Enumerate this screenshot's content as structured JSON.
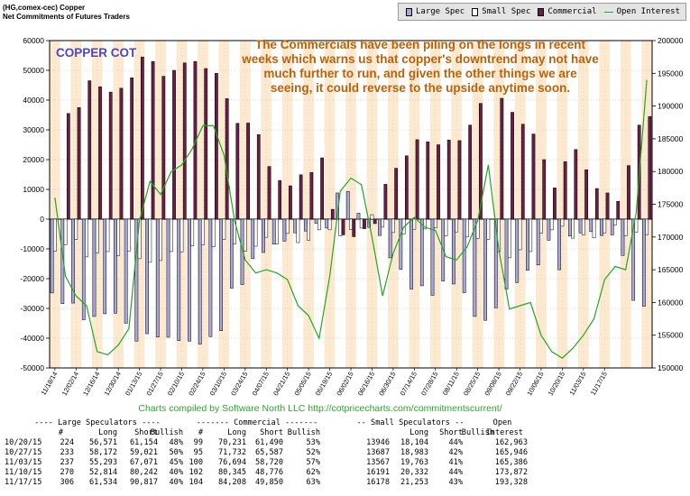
{
  "header": {
    "line1": "(HG,comex-cec) Copper",
    "line2": "Net Commitments of Futures Traders"
  },
  "legend": {
    "large_spec": "Large Spec",
    "small_spec": "Small Spec",
    "commercial": "Commercial",
    "open_interest": "Open Interest"
  },
  "colors": {
    "large_spec": "#a8a8d8",
    "small_spec": "#ffffff",
    "commercial": "#6b1e43",
    "open_interest": "#22a622",
    "band": "#fde9d0",
    "cot_title": "#4848c0",
    "annotation": "#b8620c",
    "credits": "#28a828"
  },
  "chart_data": {
    "type": "bar",
    "title": "COPPER COT",
    "annotation": "The Commercials have been piling on the longs in recent weeks which warns us that copper's downtrend may not have much further to run, and given the other things we are seeing, it could reverse to the upside anytime soon.",
    "credits": "Charts compiled by Software North LLC  http://cotpricecharts.com/commitmentscurrent/",
    "ylim_left": [
      -50000,
      60000
    ],
    "ylim_right": [
      150000,
      200000
    ],
    "yticks_left": [
      60000,
      50000,
      40000,
      30000,
      20000,
      10000,
      0,
      -10000,
      -20000,
      -30000,
      -40000,
      -50000
    ],
    "yticks_right": [
      200000,
      195000,
      190000,
      185000,
      180000,
      175000,
      170000,
      165000,
      160000,
      155000,
      150000
    ],
    "yticks_left_labels": [
      "60000",
      "50000",
      "40000",
      "30000",
      "20000",
      "10000",
      "0",
      "-10000",
      "-20000",
      "-30000",
      "-40000",
      "-50000"
    ],
    "yticks_right_labels": [
      "200000",
      "195000",
      "190000",
      "185000",
      "180000",
      "175000",
      "170000",
      "165000",
      "160000",
      "155000",
      "150000"
    ],
    "x_labels": [
      "11/18/14",
      "12/02/14",
      "12/16/14",
      "12/30/14",
      "01/13/15",
      "01/27/15",
      "02/10/15",
      "02/24/15",
      "03/10/15",
      "03/24/15",
      "04/07/15",
      "04/21/15",
      "05/05/15",
      "05/19/15",
      "06/02/15",
      "06/16/15",
      "06/30/15",
      "07/14/15",
      "07/28/15",
      "08/11/15",
      "08/25/15",
      "09/08/15",
      "09/22/15",
      "10/06/15",
      "10/20/15",
      "11/03/15",
      "11/17/15"
    ],
    "series": [
      {
        "name": "Commercial",
        "values": [
          null,
          35500,
          37500,
          46500,
          44500,
          42700,
          44000,
          47500,
          54500,
          53000,
          48000,
          50000,
          52500,
          53000,
          50600,
          49000,
          40500,
          32200,
          32300,
          28400,
          17700,
          13000,
          11200,
          14900,
          15700,
          20600,
          3300,
          -5300,
          -5900,
          -3200,
          -1500,
          11700,
          17100,
          21300,
          26700,
          26000,
          25000,
          26600,
          26400,
          31600,
          38900,
          null,
          40600,
          35900,
          31900,
          28600,
          20000,
          10500,
          19300,
          23400,
          16600,
          10300,
          8800,
          6000,
          18000,
          31600,
          34500
        ]
      },
      {
        "name": "Large Spec",
        "values": [
          -24800,
          -28400,
          -28200,
          -33800,
          -32700,
          -31800,
          -31600,
          -35000,
          -41000,
          -38500,
          -39600,
          -39700,
          -40800,
          -41000,
          -42000,
          -39500,
          -37500,
          -23200,
          -22000,
          -13300,
          -11200,
          -8400,
          -7400,
          -4600,
          -4000,
          -1400,
          -3000,
          8800,
          9300,
          2000,
          -2800,
          -5500,
          -13000,
          -16900,
          -23500,
          -22400,
          -25600,
          -20800,
          -21800,
          -24700,
          -32700,
          -34000,
          -29800,
          -23500,
          -21300,
          -17200,
          -15400,
          -7100,
          -17000,
          -5700,
          -4600,
          -4200,
          -5500,
          -5300,
          -12200,
          -27300,
          -29300
        ]
      },
      {
        "name": "Small Spec",
        "values": [
          -10800,
          -8600,
          -6800,
          -12700,
          -11400,
          -10900,
          -12200,
          -10700,
          -13300,
          -14500,
          -13900,
          -10900,
          -11000,
          -9000,
          -8600,
          -9300,
          -6800,
          -8300,
          -10800,
          -9100,
          -6100,
          -8300,
          -4800,
          -7900,
          -7100,
          -3600,
          -3600,
          -5600,
          -3500,
          -3000,
          1500,
          -2700,
          -4500,
          -5000,
          -3400,
          -3300,
          -2900,
          -5600,
          -4300,
          -6000,
          -6500,
          -6800,
          -10900,
          -13000,
          -10300,
          -10900,
          -4700,
          -3600,
          -2400,
          -6400,
          -5300,
          -6300,
          -4600,
          -1900,
          -5600,
          -4400,
          -5200
        ]
      },
      {
        "name": "Open Interest",
        "values": [
          176000,
          164000,
          161000,
          159500,
          152500,
          152000,
          153500,
          156000,
          172500,
          178500,
          176500,
          180000,
          181000,
          183500,
          187000,
          187000,
          182500,
          172500,
          166500,
          164500,
          165000,
          164500,
          163500,
          159500,
          158000,
          154500,
          164000,
          177000,
          179000,
          178000,
          170000,
          161000,
          167500,
          171500,
          173000,
          171500,
          171000,
          167000,
          166500,
          168500,
          172500,
          181000,
          168000,
          159000,
          159500,
          160000,
          155000,
          152500,
          151500,
          153000,
          155000,
          157500,
          163500,
          165500,
          165000,
          173800,
          194000
        ]
      }
    ]
  },
  "table": {
    "headers": [
      "---- Large Speculators ----",
      "------- Commercial -------",
      "-- Small Speculators --",
      "Open"
    ],
    "subheaders": [
      "#",
      "Long",
      "Short",
      "Bullish",
      "#",
      "Long",
      "Short",
      "Bullish",
      "Long",
      "Short",
      "Bullish",
      "Interest"
    ],
    "rows": [
      [
        "10/20/15",
        "224",
        "56,571",
        "61,154",
        "48%",
        "99",
        "70,231",
        "61,490",
        "53%",
        "13946",
        "18,104",
        "44%",
        "162,963"
      ],
      [
        "10/27/15",
        "233",
        "58,172",
        "59,021",
        "50%",
        "95",
        "71,732",
        "65,587",
        "52%",
        "13687",
        "18,983",
        "42%",
        "165,946"
      ],
      [
        "11/03/15",
        "237",
        "55,293",
        "67,071",
        "45%",
        "100",
        "76,694",
        "58,720",
        "57%",
        "13567",
        "19,763",
        "41%",
        "165,386"
      ],
      [
        "11/10/15",
        "270",
        "52,814",
        "80,242",
        "40%",
        "102",
        "80,345",
        "48,776",
        "62%",
        "16191",
        "20,332",
        "44%",
        "173,872"
      ],
      [
        "11/17/15",
        "306",
        "61,534",
        "90,817",
        "40%",
        "104",
        "84,208",
        "49,850",
        "63%",
        "16178",
        "21,253",
        "43%",
        "193,328"
      ]
    ]
  }
}
